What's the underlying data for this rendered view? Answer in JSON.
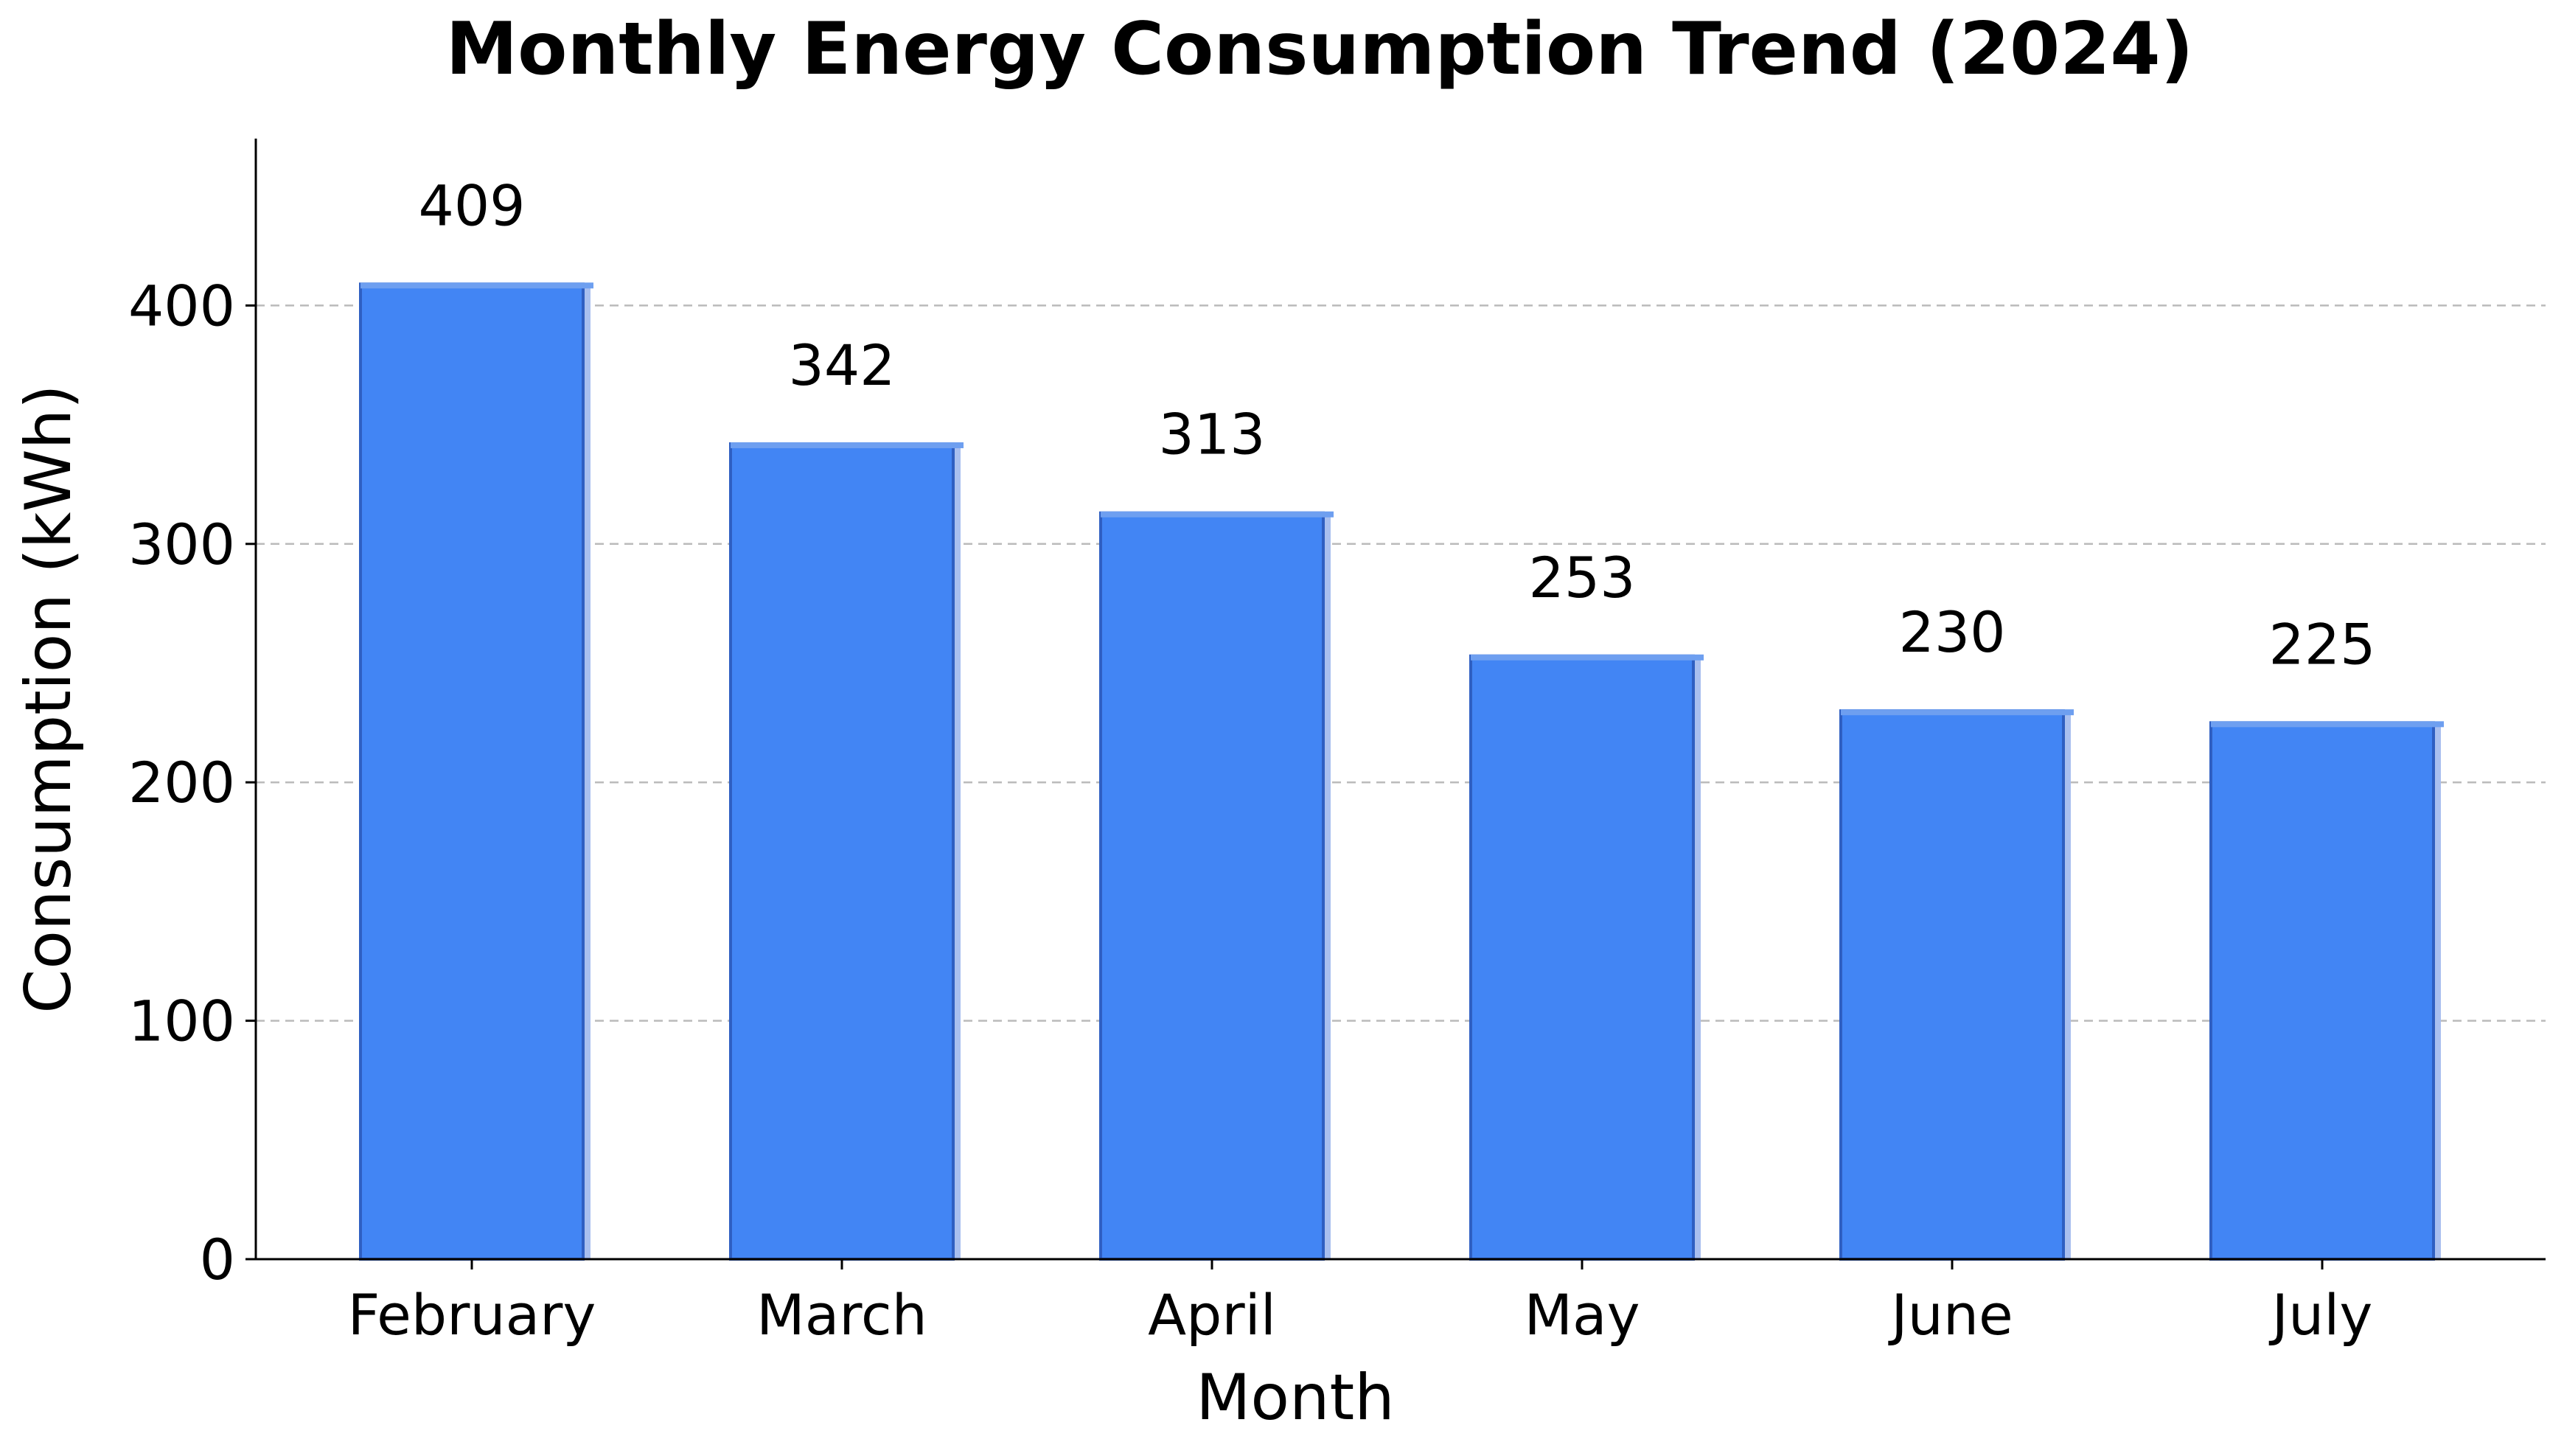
{
  "chart_data": {
    "type": "bar",
    "title": "Monthly Energy Consumption Trend (2024)",
    "xlabel": "Month",
    "ylabel": "Consumption (kWh)",
    "categories": [
      "February",
      "March",
      "April",
      "May",
      "June",
      "July"
    ],
    "values": [
      409,
      342,
      313,
      253,
      230,
      225
    ],
    "data_labels": [
      "409",
      "342",
      "313",
      "253",
      "230",
      "225"
    ],
    "ylim": [
      0,
      470
    ],
    "yticks": [
      0,
      100,
      200,
      300,
      400
    ],
    "ytick_labels": [
      "0",
      "100",
      "200",
      "300",
      "400"
    ],
    "grid": true,
    "grid_axis": "y",
    "grid_style": "dashed",
    "legend": false,
    "colors": {
      "bar": "#4285F4",
      "bar_edge": "#2F5FC2",
      "bar_highlight": "#6E9FF0",
      "bar_shadow": "#A9BFEF",
      "grid": "#BBBBBB",
      "axis": "#000000"
    }
  }
}
